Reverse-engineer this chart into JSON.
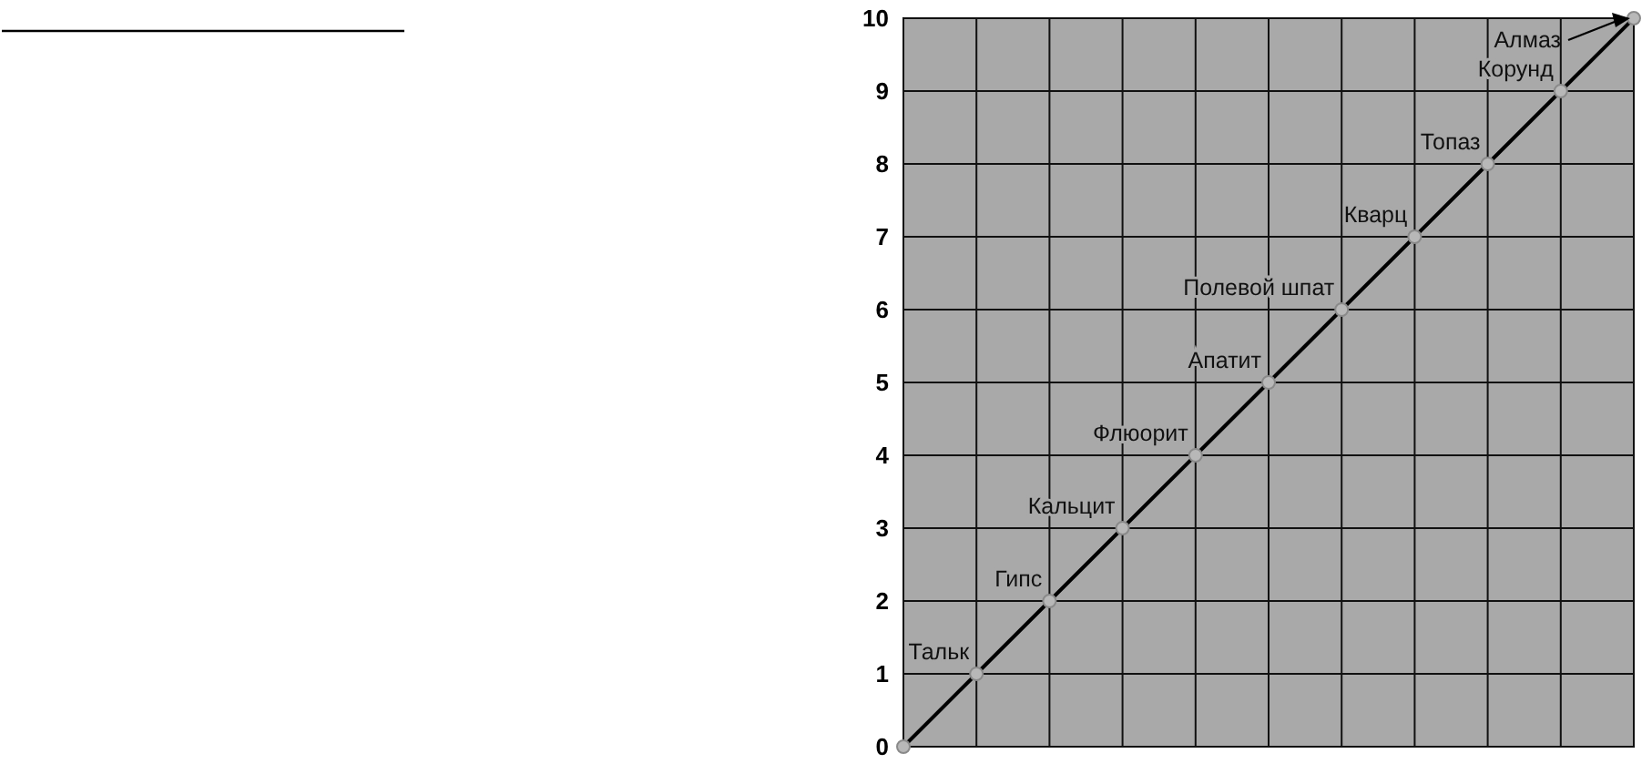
{
  "chart_data": {
    "type": "line",
    "categories": [
      null,
      null,
      null,
      null,
      null,
      null,
      null,
      null,
      null,
      null,
      null
    ],
    "series": [
      {
        "color": "#000000",
        "values": [
          0,
          1,
          2,
          3,
          4,
          5,
          6,
          7,
          8,
          9,
          10
        ]
      }
    ],
    "ylim": [
      0,
      10
    ],
    "yticks": [
      0,
      1,
      2,
      3,
      4,
      5,
      6,
      7,
      8,
      9,
      10
    ],
    "tick_labels": "y",
    "grid": true,
    "marker": "circle",
    "line_style": "solid",
    "annotations": [
      "Тальк",
      "Гипс",
      "Кальцит",
      "Флюорит",
      "Апатит",
      "Полевой шпат",
      "Кварц",
      "Топаз",
      "Корунд",
      "Алмаз"
    ]
  }
}
